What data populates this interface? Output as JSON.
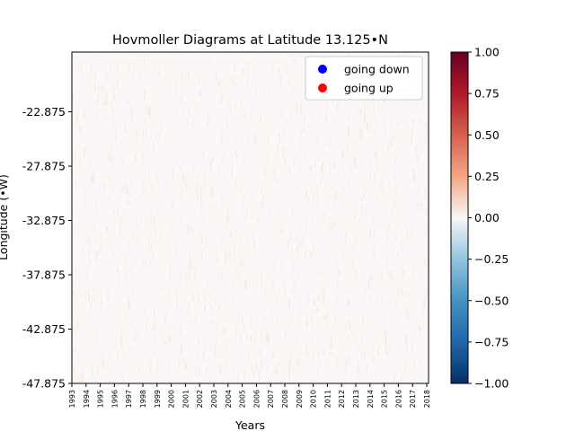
{
  "chart_data": {
    "type": "heatmap",
    "title": "Hovmoller Diagrams at Latitude 13.125•N",
    "xlabel": "Years",
    "ylabel": "Longitude (•W)",
    "x_tick_labels": [
      "1993",
      "1994",
      "1995",
      "1996",
      "1997",
      "1998",
      "1999",
      "2000",
      "2001",
      "2002",
      "2003",
      "2004",
      "2005",
      "2006",
      "2007",
      "2008",
      "2009",
      "2010",
      "2011",
      "2012",
      "2013",
      "2014",
      "2015",
      "2016",
      "2017",
      "2018"
    ],
    "y_tick_labels": [
      "-22.875",
      "-27.875",
      "-32.875",
      "-37.875",
      "-42.875",
      "-47.875"
    ],
    "y_tick_values": [
      -22.875,
      -27.875,
      -32.875,
      -37.875,
      -42.875,
      -47.875
    ],
    "ylim": [
      -47.875,
      -17.375
    ],
    "legend": [
      {
        "label": "going down",
        "color": "#0000ff"
      },
      {
        "label": "going up",
        "color": "#ff0000"
      }
    ],
    "legend_position": "top-right",
    "colorbar": {
      "colormap": "RdBu_r",
      "range": [
        -1.0,
        1.0
      ],
      "tick_labels": [
        "1.00",
        "0.75",
        "0.50",
        "0.25",
        "0.00",
        "−0.25",
        "−0.50",
        "−0.75",
        "−1.00"
      ],
      "tick_values": [
        1.0,
        0.75,
        0.5,
        0.25,
        0.0,
        -0.25,
        -0.5,
        -0.75,
        -1.0
      ]
    },
    "value_range_observed": [
      -0.1,
      0.1
    ]
  }
}
